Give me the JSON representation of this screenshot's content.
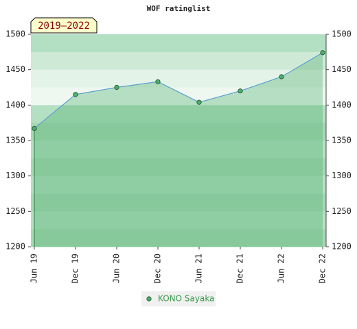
{
  "chart_data": {
    "type": "line",
    "title": "WOF ratinglist",
    "annotation": "2019–2022",
    "categories": [
      "Jun 19",
      "Dec 19",
      "Jun 20",
      "Dec 20",
      "Jun 21",
      "Dec 21",
      "Jun 22",
      "Dec 22"
    ],
    "series": [
      {
        "name": "KONO Sayaka",
        "color": "#4caf6a",
        "line_color": "#5a9fd0",
        "values": [
          1367,
          1415,
          1425,
          1433,
          1404,
          1420,
          1440,
          1474
        ]
      }
    ],
    "ylim": [
      1200,
      1500
    ],
    "yticks": [
      1200,
      1250,
      1300,
      1350,
      1400,
      1450,
      1500
    ],
    "y2lim": [
      1200,
      1500
    ],
    "y2ticks": [
      1200,
      1250,
      1300,
      1350,
      1400,
      1450,
      1500
    ]
  }
}
